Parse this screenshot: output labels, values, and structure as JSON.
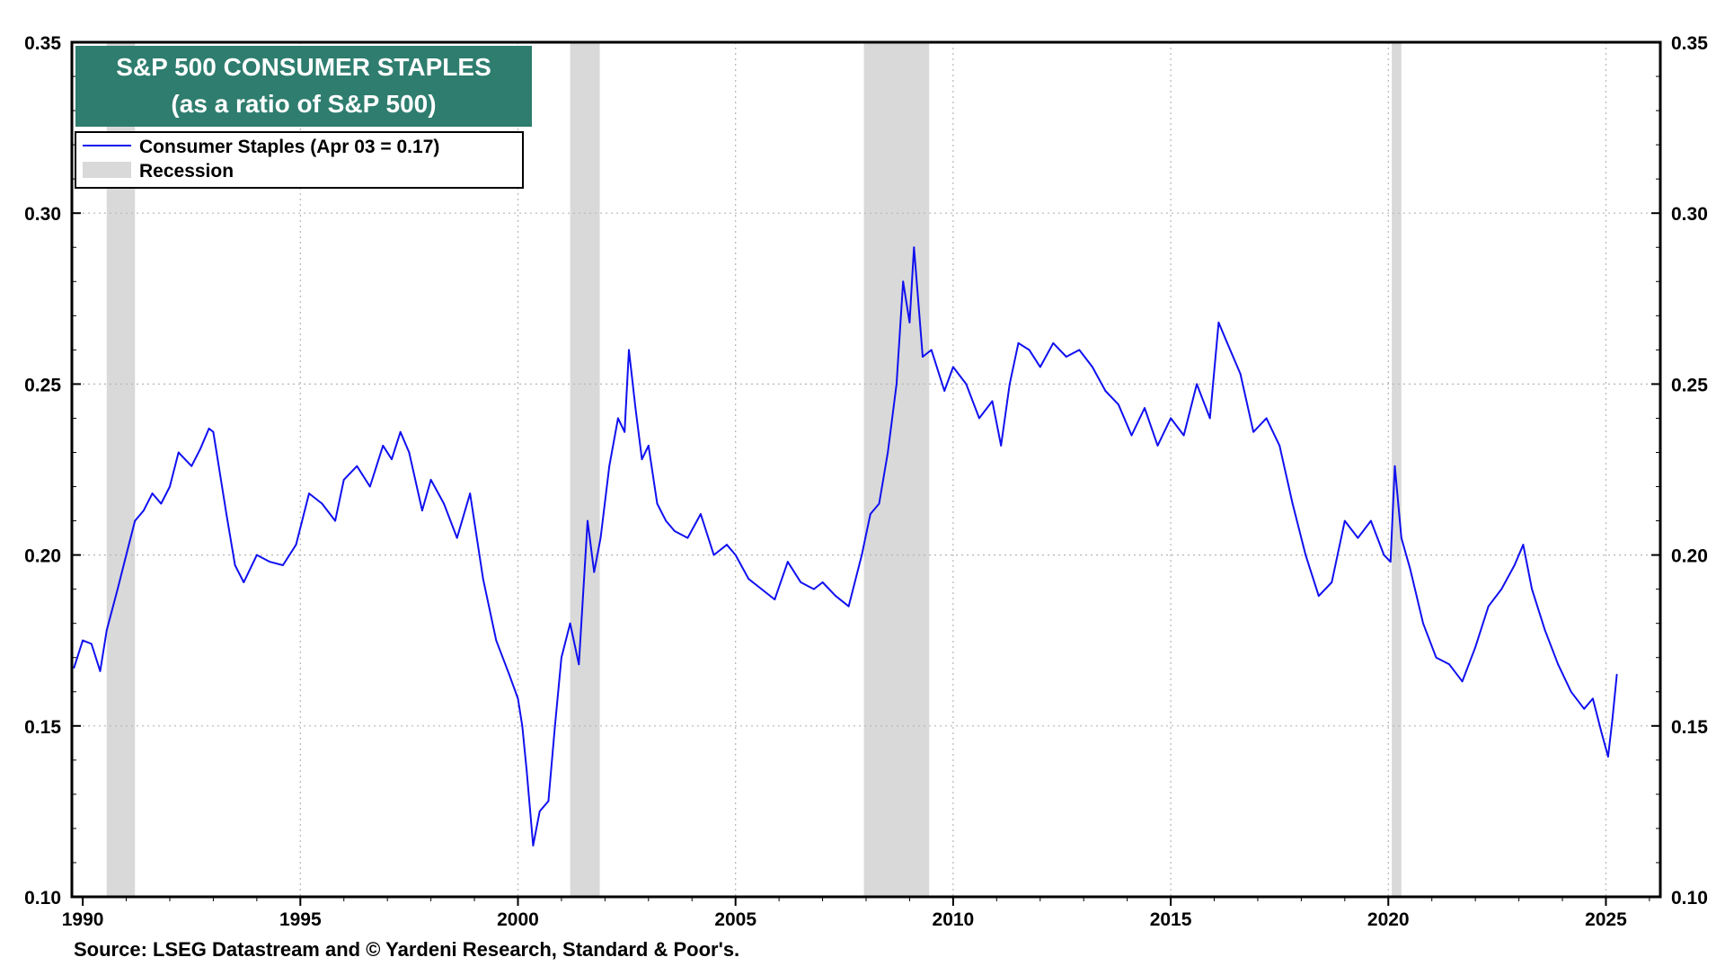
{
  "chart_data": {
    "type": "line",
    "title": "S&P 500 CONSUMER STAPLES",
    "subtitle": "(as a ratio of S&P 500)",
    "xlabel": "",
    "ylabel": "",
    "xlim": [
      1989.75,
      2026.25
    ],
    "ylim": [
      0.1,
      0.35
    ],
    "y_ticks": [
      "0.10",
      "0.15",
      "0.20",
      "0.25",
      "0.30",
      "0.35"
    ],
    "x_ticks": [
      "1990",
      "1995",
      "2000",
      "2005",
      "2010",
      "2015",
      "2020",
      "2025"
    ],
    "grid": true,
    "legend_position": "top-left",
    "legend": [
      {
        "label": "Consumer Staples (Apr 03 = 0.17)",
        "kind": "line",
        "color": "#1010f0"
      },
      {
        "label": "Recession",
        "kind": "band",
        "color": "#d9d9d9"
      }
    ],
    "recessions": [
      [
        1990.55,
        1991.2
      ],
      [
        2001.2,
        2001.88
      ],
      [
        2007.95,
        2009.45
      ],
      [
        2020.08,
        2020.3
      ]
    ],
    "series": [
      {
        "name": "Consumer Staples",
        "color": "#1010f0",
        "x": [
          1989.8,
          1990.0,
          1990.2,
          1990.4,
          1990.55,
          1990.8,
          1991.0,
          1991.2,
          1991.4,
          1991.6,
          1991.8,
          1992.0,
          1992.2,
          1992.5,
          1992.7,
          1992.9,
          1993.0,
          1993.1,
          1993.3,
          1993.5,
          1993.7,
          1994.0,
          1994.3,
          1994.6,
          1994.9,
          1995.2,
          1995.5,
          1995.8,
          1996.0,
          1996.3,
          1996.6,
          1996.9,
          1997.1,
          1997.3,
          1997.5,
          1997.8,
          1998.0,
          1998.3,
          1998.6,
          1998.9,
          1999.2,
          1999.5,
          1999.8,
          2000.0,
          2000.1,
          2000.2,
          2000.35,
          2000.5,
          2000.7,
          2000.85,
          2001.0,
          2001.2,
          2001.4,
          2001.6,
          2001.75,
          2001.9,
          2002.1,
          2002.3,
          2002.45,
          2002.55,
          2002.7,
          2002.85,
          2003.0,
          2003.2,
          2003.4,
          2003.6,
          2003.9,
          2004.2,
          2004.5,
          2004.8,
          2005.0,
          2005.3,
          2005.6,
          2005.9,
          2006.2,
          2006.5,
          2006.8,
          2007.0,
          2007.3,
          2007.6,
          2007.9,
          2008.1,
          2008.3,
          2008.5,
          2008.7,
          2008.85,
          2009.0,
          2009.1,
          2009.3,
          2009.5,
          2009.8,
          2010.0,
          2010.3,
          2010.6,
          2010.9,
          2011.1,
          2011.3,
          2011.5,
          2011.75,
          2012.0,
          2012.3,
          2012.6,
          2012.9,
          2013.2,
          2013.5,
          2013.8,
          2014.1,
          2014.4,
          2014.7,
          2015.0,
          2015.3,
          2015.6,
          2015.9,
          2016.1,
          2016.3,
          2016.6,
          2016.9,
          2017.2,
          2017.5,
          2017.8,
          2018.1,
          2018.4,
          2018.7,
          2019.0,
          2019.3,
          2019.6,
          2019.9,
          2020.05,
          2020.15,
          2020.3,
          2020.5,
          2020.8,
          2021.1,
          2021.4,
          2021.7,
          2022.0,
          2022.3,
          2022.6,
          2022.9,
          2023.1,
          2023.3,
          2023.6,
          2023.9,
          2024.2,
          2024.5,
          2024.7,
          2024.9,
          2025.05,
          2025.15,
          2025.25
        ],
        "values": [
          0.167,
          0.175,
          0.174,
          0.166,
          0.178,
          0.19,
          0.2,
          0.21,
          0.213,
          0.218,
          0.215,
          0.22,
          0.23,
          0.226,
          0.231,
          0.237,
          0.236,
          0.228,
          0.212,
          0.197,
          0.192,
          0.2,
          0.198,
          0.197,
          0.203,
          0.218,
          0.215,
          0.21,
          0.222,
          0.226,
          0.22,
          0.232,
          0.228,
          0.236,
          0.23,
          0.213,
          0.222,
          0.215,
          0.205,
          0.218,
          0.193,
          0.175,
          0.165,
          0.158,
          0.15,
          0.137,
          0.115,
          0.125,
          0.128,
          0.15,
          0.17,
          0.18,
          0.168,
          0.21,
          0.195,
          0.205,
          0.226,
          0.24,
          0.236,
          0.26,
          0.243,
          0.228,
          0.232,
          0.215,
          0.21,
          0.207,
          0.205,
          0.212,
          0.2,
          0.203,
          0.2,
          0.193,
          0.19,
          0.187,
          0.198,
          0.192,
          0.19,
          0.192,
          0.188,
          0.185,
          0.2,
          0.212,
          0.215,
          0.23,
          0.25,
          0.28,
          0.268,
          0.29,
          0.258,
          0.26,
          0.248,
          0.255,
          0.25,
          0.24,
          0.245,
          0.232,
          0.25,
          0.262,
          0.26,
          0.255,
          0.262,
          0.258,
          0.26,
          0.255,
          0.248,
          0.244,
          0.235,
          0.243,
          0.232,
          0.24,
          0.235,
          0.25,
          0.24,
          0.268,
          0.262,
          0.253,
          0.236,
          0.24,
          0.232,
          0.215,
          0.2,
          0.188,
          0.192,
          0.21,
          0.205,
          0.21,
          0.2,
          0.198,
          0.226,
          0.205,
          0.196,
          0.18,
          0.17,
          0.168,
          0.163,
          0.173,
          0.185,
          0.19,
          0.197,
          0.203,
          0.19,
          0.178,
          0.168,
          0.16,
          0.155,
          0.158,
          0.148,
          0.141,
          0.152,
          0.165
        ]
      }
    ]
  },
  "source_note": "Source: LSEG Datastream and © Yardeni Research, Standard & Poor's."
}
